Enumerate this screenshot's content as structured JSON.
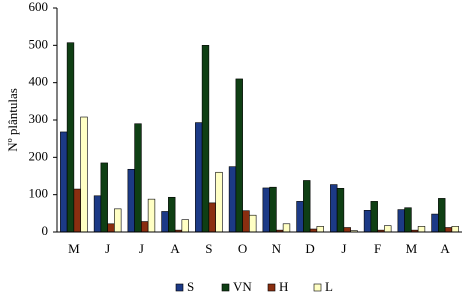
{
  "chart_data": {
    "type": "bar",
    "y_label": "Nº plântulas",
    "categories": [
      "M",
      "J",
      "J",
      "A",
      "S",
      "O",
      "N",
      "D",
      "J",
      "F",
      "M",
      "A"
    ],
    "series": [
      {
        "name": "S",
        "color": "#1c3a86",
        "values": [
          268,
          97,
          168,
          55,
          293,
          175,
          118,
          82,
          127,
          58,
          60,
          48
        ]
      },
      {
        "name": "VN",
        "color": "#0f3f14",
        "values": [
          507,
          185,
          290,
          93,
          500,
          410,
          120,
          138,
          117,
          82,
          65,
          90
        ]
      },
      {
        "name": "H",
        "color": "#8a2e10",
        "values": [
          115,
          22,
          28,
          5,
          78,
          57,
          5,
          8,
          12,
          5,
          5,
          12
        ]
      },
      {
        "name": "L",
        "color": "#ffffc4",
        "values": [
          308,
          62,
          88,
          33,
          160,
          45,
          22,
          15,
          4,
          17,
          15,
          15
        ]
      }
    ],
    "ylim": [
      0,
      600
    ],
    "yticks": [
      0,
      100,
      200,
      300,
      400,
      500,
      600
    ],
    "grid": false
  }
}
